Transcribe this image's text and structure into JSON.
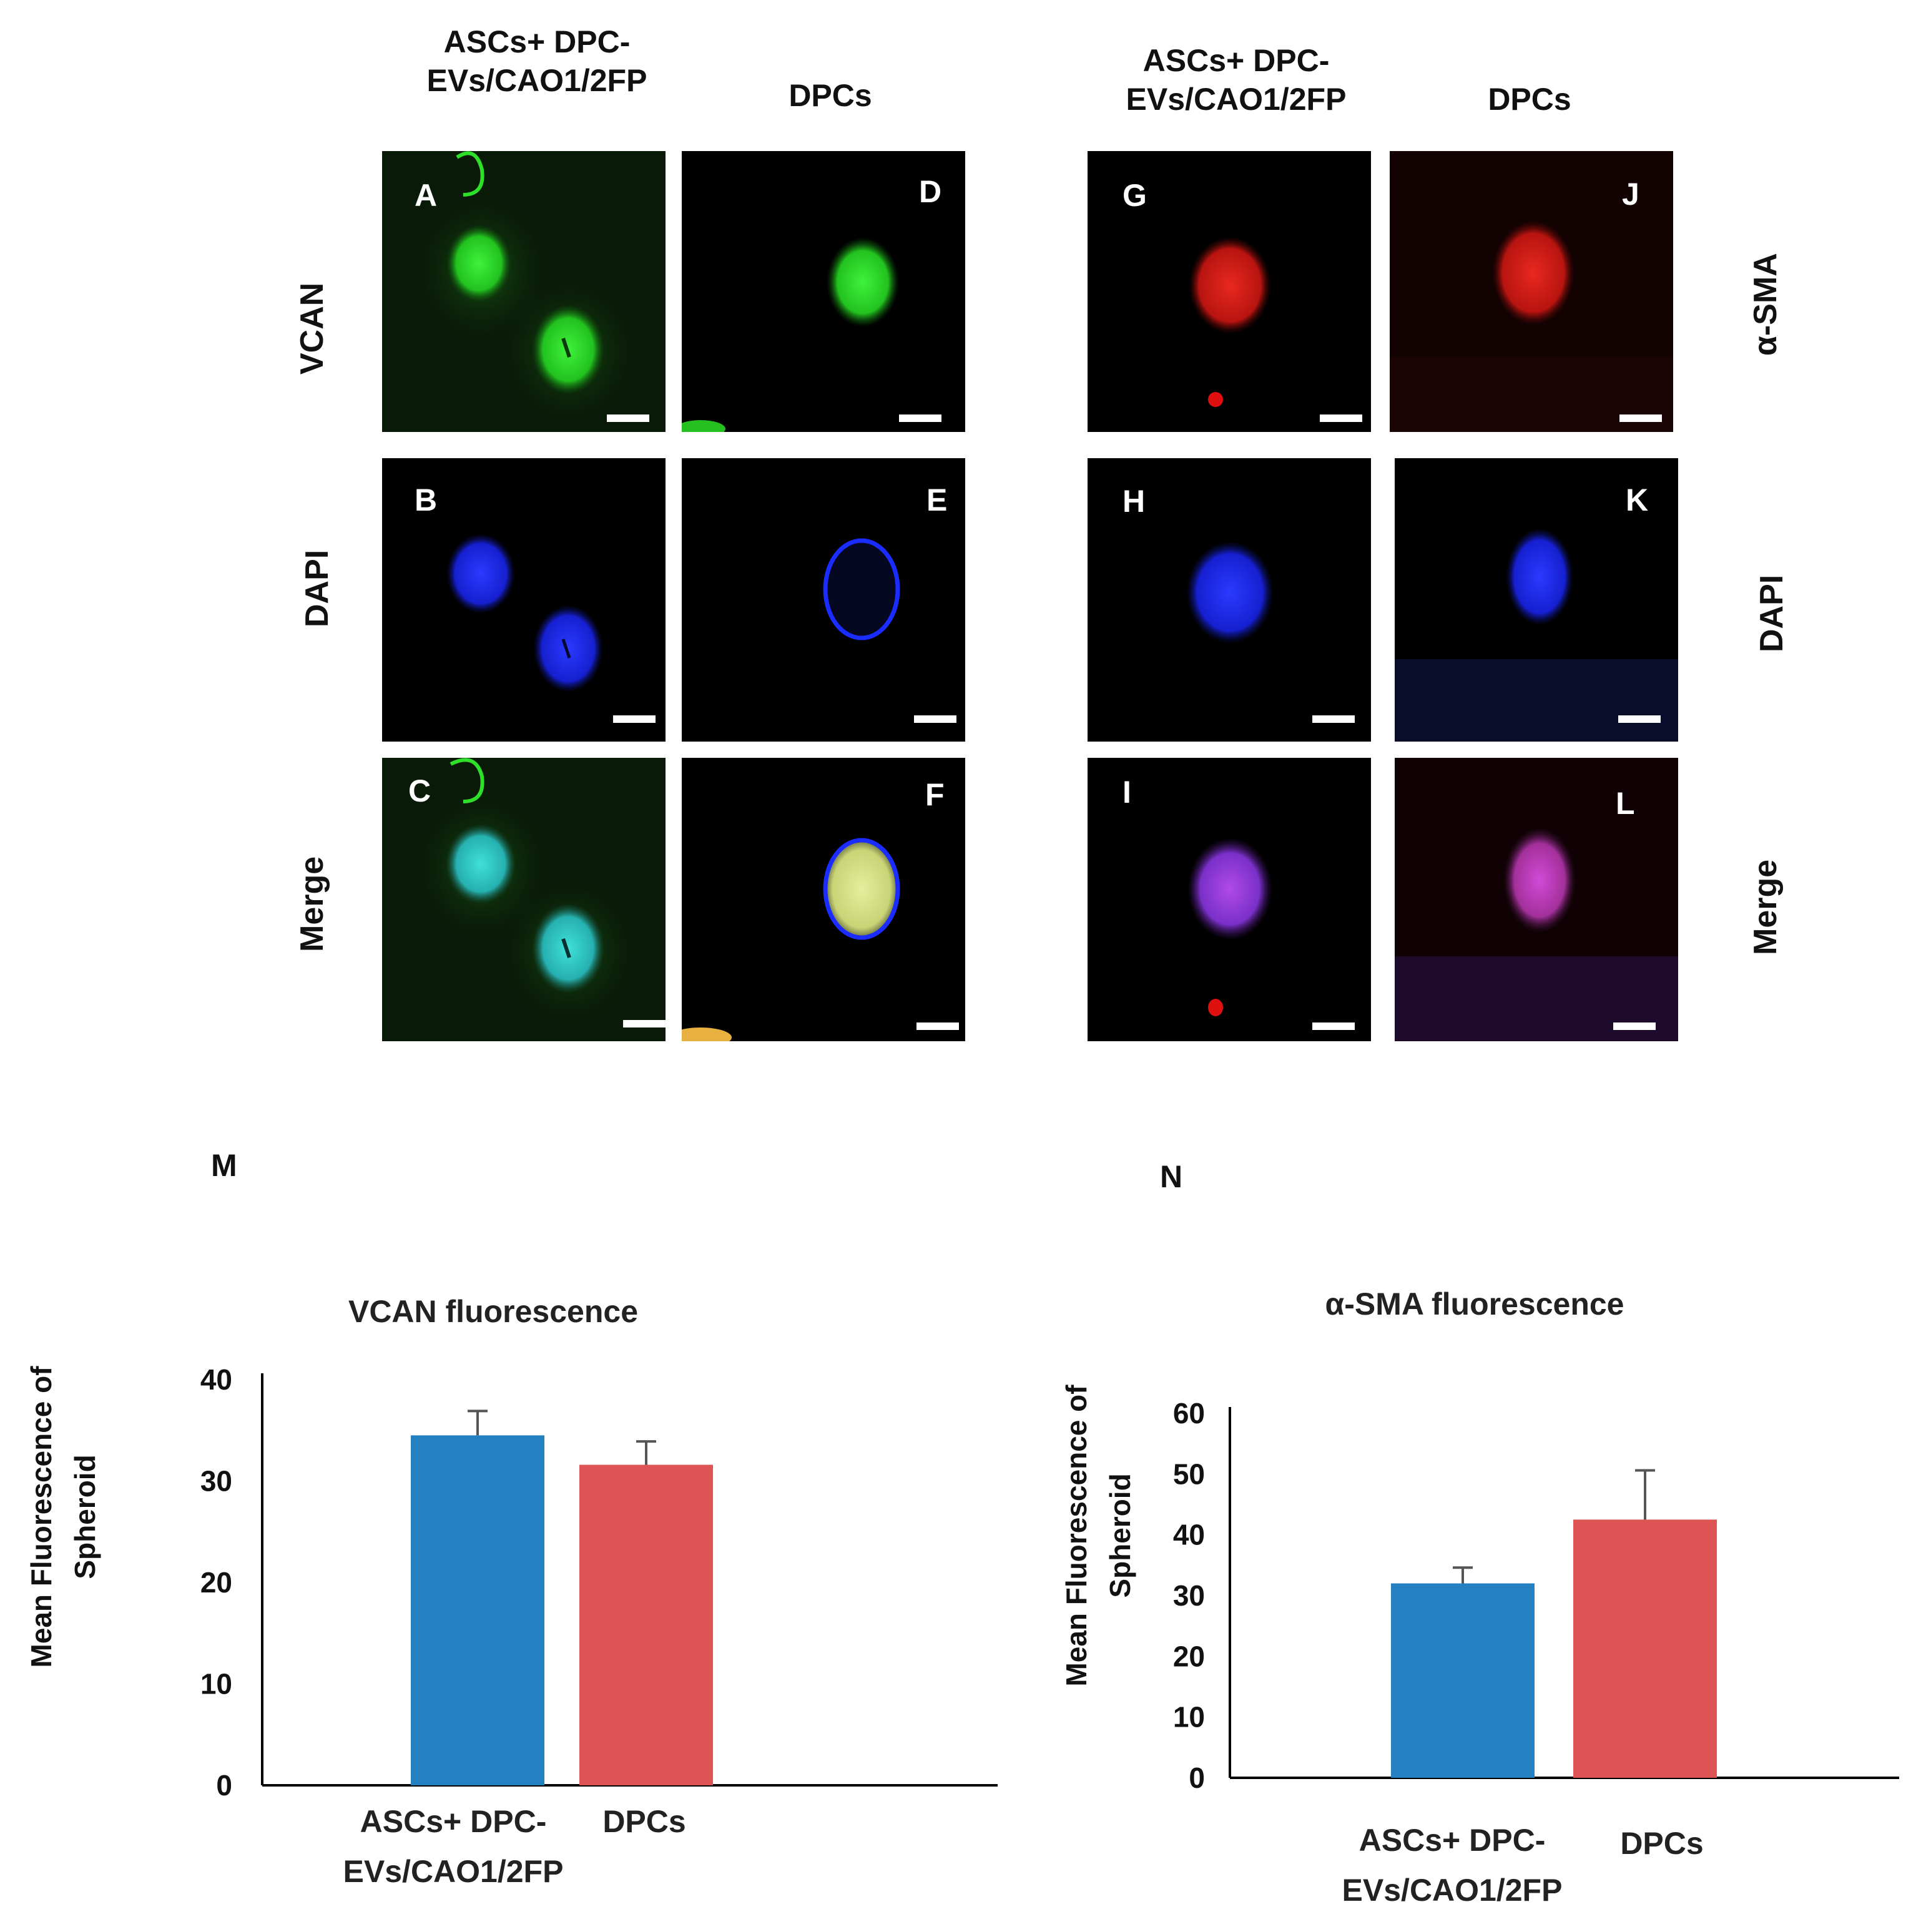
{
  "figure": {
    "headers": {
      "left_group_col1": "ASCs+ DPC-\nEVs/CAO1/2FP",
      "left_group_col2": "DPCs",
      "right_group_col1": "ASCs+ DPC-\nEVs/CAO1/2FP",
      "right_group_col2": "DPCs"
    },
    "row_labels_left": [
      "VCAN",
      "DAPI",
      "Merge"
    ],
    "row_labels_right": [
      "α-SMA",
      "DAPI",
      "Merge"
    ],
    "panels": [
      "A",
      "B",
      "C",
      "D",
      "E",
      "F",
      "G",
      "H",
      "I",
      "J",
      "K",
      "L"
    ],
    "panel_colors": {
      "vcan": "#2fd42a",
      "dapi": "#1a2cff",
      "merge_teal": "#2ec7c0",
      "merge_yellow": "#d8e38c",
      "sma": "#d41a14",
      "merge_purple": "#8a3cd6"
    },
    "chart_letters": [
      "M",
      "N"
    ]
  },
  "chart_data": [
    {
      "type": "bar",
      "title": "VCAN fluorescence",
      "ylabel": "Mean Fluorescence of\nSpheroid",
      "xlabel": "",
      "categories": [
        "ASCs+ DPC-\nEVs/CAO1/2FP",
        "DPCs"
      ],
      "values": [
        34.5,
        31.6
      ],
      "errors": [
        2.4,
        2.3
      ],
      "colors": [
        "#2580c2",
        "#de5353"
      ],
      "ylim": [
        0,
        40
      ],
      "yticks": [
        0,
        10,
        20,
        30,
        40
      ],
      "grid": false
    },
    {
      "type": "bar",
      "title": "α-SMA fluorescence",
      "ylabel": "Mean Fluorescence of\nSpheroid",
      "xlabel": "",
      "categories": [
        "ASCs+ DPC-\nEVs/CAO1/2FP",
        "DPCs"
      ],
      "values": [
        32,
        42.5
      ],
      "errors": [
        2.6,
        8.1
      ],
      "colors": [
        "#2580c2",
        "#de5353"
      ],
      "ylim": [
        0,
        60
      ],
      "yticks": [
        0,
        10,
        20,
        30,
        40,
        50,
        60
      ],
      "grid": false
    }
  ]
}
